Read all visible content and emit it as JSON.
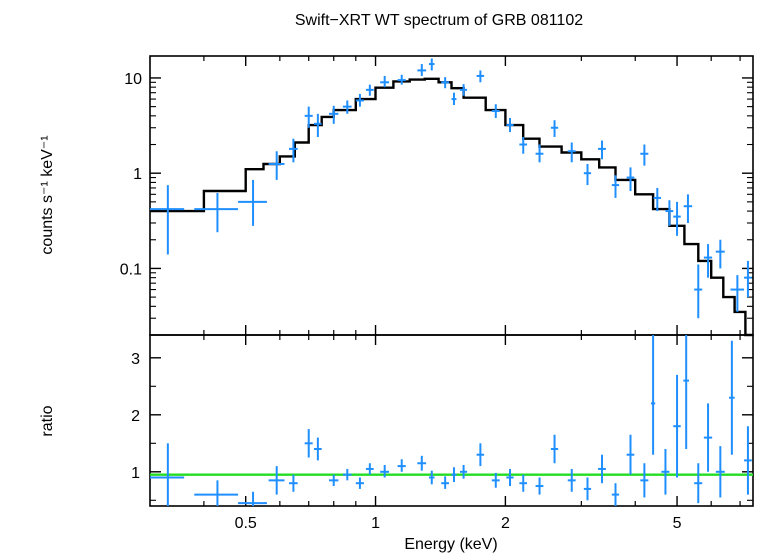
{
  "chart_data": [
    {
      "type": "scatter",
      "title": "Swift−XRT WT spectrum of GRB 081102",
      "xlabel": "",
      "ylabel": "counts s⁻¹ keV⁻¹",
      "xscale": "log",
      "yscale": "log",
      "xlim": [
        0.3,
        7.5
      ],
      "ylim": [
        0.02,
        17
      ],
      "yticks": [
        0.1,
        1,
        10
      ],
      "ytick_labels": [
        "0.1",
        "1",
        "10"
      ],
      "grid": false,
      "colors": {
        "data": "#1f8fff",
        "model": "#000000",
        "axes": "#000000"
      },
      "series": [
        {
          "kind": "data-crosses",
          "points": [
            {
              "x": 0.33,
              "dx": 0.03,
              "y": 0.42,
              "ylo": 0.14,
              "yhi": 0.75
            },
            {
              "x": 0.43,
              "dx": 0.05,
              "y": 0.42,
              "ylo": 0.24,
              "yhi": 0.62
            },
            {
              "x": 0.52,
              "dx": 0.04,
              "y": 0.5,
              "ylo": 0.28,
              "yhi": 0.85
            },
            {
              "x": 0.59,
              "dx": 0.025,
              "y": 1.25,
              "ylo": 0.85,
              "yhi": 1.7
            },
            {
              "x": 0.645,
              "dx": 0.015,
              "y": 1.8,
              "ylo": 1.3,
              "yhi": 2.3
            },
            {
              "x": 0.7,
              "dx": 0.015,
              "y": 4.0,
              "ylo": 3.0,
              "yhi": 5.0
            },
            {
              "x": 0.735,
              "dx": 0.015,
              "y": 3.3,
              "ylo": 2.4,
              "yhi": 4.2
            },
            {
              "x": 0.8,
              "dx": 0.02,
              "y": 4.2,
              "ylo": 3.3,
              "yhi": 5.1
            },
            {
              "x": 0.86,
              "dx": 0.02,
              "y": 5.0,
              "ylo": 4.2,
              "yhi": 5.8
            },
            {
              "x": 0.92,
              "dx": 0.02,
              "y": 5.8,
              "ylo": 5.0,
              "yhi": 6.8
            },
            {
              "x": 0.97,
              "dx": 0.02,
              "y": 7.5,
              "ylo": 6.5,
              "yhi": 8.5
            },
            {
              "x": 1.05,
              "dx": 0.025,
              "y": 9.0,
              "ylo": 8.0,
              "yhi": 10.5
            },
            {
              "x": 1.15,
              "dx": 0.025,
              "y": 9.5,
              "ylo": 8.5,
              "yhi": 10.8
            },
            {
              "x": 1.28,
              "dx": 0.03,
              "y": 12.0,
              "ylo": 10.5,
              "yhi": 14.0
            },
            {
              "x": 1.35,
              "dx": 0.02,
              "y": 14.0,
              "ylo": 12.0,
              "yhi": 16.0
            },
            {
              "x": 1.45,
              "dx": 0.03,
              "y": 9.0,
              "ylo": 7.8,
              "yhi": 10.2
            },
            {
              "x": 1.52,
              "dx": 0.02,
              "y": 6.0,
              "ylo": 5.2,
              "yhi": 7.0
            },
            {
              "x": 1.6,
              "dx": 0.03,
              "y": 7.5,
              "ylo": 6.5,
              "yhi": 8.6
            },
            {
              "x": 1.75,
              "dx": 0.035,
              "y": 10.5,
              "ylo": 9.0,
              "yhi": 12.0
            },
            {
              "x": 1.9,
              "dx": 0.04,
              "y": 4.5,
              "ylo": 3.8,
              "yhi": 5.3
            },
            {
              "x": 2.05,
              "dx": 0.04,
              "y": 3.2,
              "ylo": 2.7,
              "yhi": 3.8
            },
            {
              "x": 2.2,
              "dx": 0.045,
              "y": 2.0,
              "ylo": 1.6,
              "yhi": 2.4
            },
            {
              "x": 2.4,
              "dx": 0.05,
              "y": 1.6,
              "ylo": 1.3,
              "yhi": 2.0
            },
            {
              "x": 2.6,
              "dx": 0.05,
              "y": 3.0,
              "ylo": 2.4,
              "yhi": 3.6
            },
            {
              "x": 2.85,
              "dx": 0.06,
              "y": 1.7,
              "ylo": 1.3,
              "yhi": 2.1
            },
            {
              "x": 3.1,
              "dx": 0.06,
              "y": 1.0,
              "ylo": 0.75,
              "yhi": 1.25
            },
            {
              "x": 3.35,
              "dx": 0.07,
              "y": 1.8,
              "ylo": 1.4,
              "yhi": 2.2
            },
            {
              "x": 3.6,
              "dx": 0.07,
              "y": 0.75,
              "ylo": 0.55,
              "yhi": 0.95
            },
            {
              "x": 3.9,
              "dx": 0.08,
              "y": 0.9,
              "ylo": 0.65,
              "yhi": 1.15
            },
            {
              "x": 4.2,
              "dx": 0.09,
              "y": 1.6,
              "ylo": 1.2,
              "yhi": 2.0
            },
            {
              "x": 4.5,
              "dx": 0.09,
              "y": 0.55,
              "ylo": 0.4,
              "yhi": 0.7
            },
            {
              "x": 4.8,
              "dx": 0.1,
              "y": 0.4,
              "ylo": 0.28,
              "yhi": 0.52
            },
            {
              "x": 5.0,
              "dx": 0.1,
              "y": 0.35,
              "ylo": 0.22,
              "yhi": 0.5
            },
            {
              "x": 5.3,
              "dx": 0.12,
              "y": 0.45,
              "ylo": 0.3,
              "yhi": 0.6
            },
            {
              "x": 5.6,
              "dx": 0.12,
              "y": 0.06,
              "ylo": 0.03,
              "yhi": 0.11
            },
            {
              "x": 5.9,
              "dx": 0.13,
              "y": 0.13,
              "ylo": 0.08,
              "yhi": 0.18
            },
            {
              "x": 6.3,
              "dx": 0.15,
              "y": 0.15,
              "ylo": 0.1,
              "yhi": 0.2
            },
            {
              "x": 6.9,
              "dx": 0.25,
              "y": 0.06,
              "ylo": 0.035,
              "yhi": 0.085
            },
            {
              "x": 7.3,
              "dx": 0.15,
              "y": 0.08,
              "ylo": 0.05,
              "yhi": 0.12
            }
          ]
        },
        {
          "kind": "model-step",
          "edges": [
            0.3,
            0.4,
            0.5,
            0.55,
            0.6,
            0.65,
            0.7,
            0.75,
            0.8,
            0.9,
            1.0,
            1.1,
            1.2,
            1.3,
            1.4,
            1.5,
            1.6,
            1.8,
            2.0,
            2.2,
            2.4,
            2.7,
            3.0,
            3.3,
            3.6,
            4.0,
            4.4,
            4.8,
            5.2,
            5.6,
            6.0,
            6.4,
            6.8,
            7.2,
            7.5
          ],
          "values": [
            0.4,
            0.65,
            1.1,
            1.25,
            1.5,
            2.1,
            3.2,
            3.9,
            4.6,
            6.0,
            7.9,
            9.2,
            9.6,
            9.8,
            9.0,
            7.8,
            6.2,
            4.6,
            3.2,
            2.3,
            1.9,
            1.65,
            1.4,
            1.15,
            0.85,
            0.6,
            0.42,
            0.28,
            0.18,
            0.12,
            0.08,
            0.05,
            0.035,
            0.02
          ]
        }
      ]
    },
    {
      "type": "scatter",
      "title": "",
      "xlabel": "Energy (keV)",
      "ylabel": "ratio",
      "xscale": "log",
      "xlim": [
        0.3,
        7.5
      ],
      "ylim": [
        0.4,
        3.4
      ],
      "xticks": [
        0.5,
        1,
        2,
        5
      ],
      "xtick_labels": [
        "0.5",
        "1",
        "2",
        "5"
      ],
      "yticks": [
        1,
        2,
        3
      ],
      "ytick_labels": [
        "1",
        "2",
        "3"
      ],
      "grid": false,
      "colors": {
        "data": "#1f8fff",
        "reference": "#22dd22",
        "axes": "#000000"
      },
      "reference_line": 0.95,
      "series": [
        {
          "kind": "data-crosses",
          "points": [
            {
              "x": 0.33,
              "dx": 0.03,
              "y": 0.9,
              "ylo": 0.35,
              "yhi": 1.5
            },
            {
              "x": 0.43,
              "dx": 0.05,
              "y": 0.6,
              "ylo": 0.38,
              "yhi": 0.85
            },
            {
              "x": 0.52,
              "dx": 0.04,
              "y": 0.45,
              "ylo": 0.3,
              "yhi": 0.65
            },
            {
              "x": 0.59,
              "dx": 0.025,
              "y": 0.85,
              "ylo": 0.6,
              "yhi": 1.1
            },
            {
              "x": 0.645,
              "dx": 0.015,
              "y": 0.8,
              "ylo": 0.65,
              "yhi": 0.95
            },
            {
              "x": 0.7,
              "dx": 0.015,
              "y": 1.5,
              "ylo": 1.25,
              "yhi": 1.75
            },
            {
              "x": 0.735,
              "dx": 0.015,
              "y": 1.4,
              "ylo": 1.2,
              "yhi": 1.6
            },
            {
              "x": 0.8,
              "dx": 0.02,
              "y": 0.85,
              "ylo": 0.75,
              "yhi": 0.95
            },
            {
              "x": 0.86,
              "dx": 0.02,
              "y": 0.95,
              "ylo": 0.85,
              "yhi": 1.05
            },
            {
              "x": 0.92,
              "dx": 0.02,
              "y": 0.8,
              "ylo": 0.7,
              "yhi": 0.9
            },
            {
              "x": 0.97,
              "dx": 0.02,
              "y": 1.05,
              "ylo": 0.95,
              "yhi": 1.15
            },
            {
              "x": 1.05,
              "dx": 0.025,
              "y": 1.0,
              "ylo": 0.9,
              "yhi": 1.12
            },
            {
              "x": 1.15,
              "dx": 0.025,
              "y": 1.1,
              "ylo": 1.0,
              "yhi": 1.22
            },
            {
              "x": 1.28,
              "dx": 0.03,
              "y": 1.15,
              "ylo": 1.02,
              "yhi": 1.28
            },
            {
              "x": 1.35,
              "dx": 0.02,
              "y": 0.9,
              "ylo": 0.78,
              "yhi": 1.02
            },
            {
              "x": 1.45,
              "dx": 0.03,
              "y": 0.8,
              "ylo": 0.7,
              "yhi": 0.92
            },
            {
              "x": 1.52,
              "dx": 0.02,
              "y": 0.95,
              "ylo": 0.82,
              "yhi": 1.08
            },
            {
              "x": 1.6,
              "dx": 0.03,
              "y": 1.0,
              "ylo": 0.88,
              "yhi": 1.12
            },
            {
              "x": 1.75,
              "dx": 0.035,
              "y": 1.3,
              "ylo": 1.1,
              "yhi": 1.5
            },
            {
              "x": 1.9,
              "dx": 0.04,
              "y": 0.85,
              "ylo": 0.72,
              "yhi": 0.98
            },
            {
              "x": 2.05,
              "dx": 0.04,
              "y": 0.9,
              "ylo": 0.75,
              "yhi": 1.05
            },
            {
              "x": 2.2,
              "dx": 0.045,
              "y": 0.8,
              "ylo": 0.65,
              "yhi": 0.95
            },
            {
              "x": 2.4,
              "dx": 0.05,
              "y": 0.75,
              "ylo": 0.6,
              "yhi": 0.9
            },
            {
              "x": 2.6,
              "dx": 0.05,
              "y": 1.4,
              "ylo": 1.15,
              "yhi": 1.65
            },
            {
              "x": 2.85,
              "dx": 0.06,
              "y": 0.85,
              "ylo": 0.65,
              "yhi": 1.05
            },
            {
              "x": 3.1,
              "dx": 0.06,
              "y": 0.7,
              "ylo": 0.5,
              "yhi": 0.9
            },
            {
              "x": 3.35,
              "dx": 0.07,
              "y": 1.05,
              "ylo": 0.8,
              "yhi": 1.3
            },
            {
              "x": 3.6,
              "dx": 0.07,
              "y": 0.6,
              "ylo": 0.4,
              "yhi": 0.8
            },
            {
              "x": 3.9,
              "dx": 0.08,
              "y": 1.3,
              "ylo": 0.95,
              "yhi": 1.65
            },
            {
              "x": 4.2,
              "dx": 0.09,
              "y": 0.85,
              "ylo": 0.55,
              "yhi": 1.15
            },
            {
              "x": 4.4,
              "dx": 0.05,
              "y": 2.2,
              "ylo": 1.3,
              "yhi": 3.4
            },
            {
              "x": 4.7,
              "dx": 0.1,
              "y": 1.0,
              "ylo": 0.6,
              "yhi": 1.4
            },
            {
              "x": 5.0,
              "dx": 0.1,
              "y": 1.8,
              "ylo": 0.9,
              "yhi": 2.7
            },
            {
              "x": 5.25,
              "dx": 0.08,
              "y": 2.6,
              "ylo": 1.4,
              "yhi": 3.4
            },
            {
              "x": 5.6,
              "dx": 0.12,
              "y": 0.8,
              "ylo": 0.45,
              "yhi": 1.15
            },
            {
              "x": 5.9,
              "dx": 0.13,
              "y": 1.6,
              "ylo": 1.0,
              "yhi": 2.2
            },
            {
              "x": 6.3,
              "dx": 0.15,
              "y": 1.0,
              "ylo": 0.55,
              "yhi": 1.45
            },
            {
              "x": 6.7,
              "dx": 0.1,
              "y": 2.3,
              "ylo": 1.3,
              "yhi": 3.3
            },
            {
              "x": 7.3,
              "dx": 0.15,
              "y": 1.2,
              "ylo": 0.6,
              "yhi": 1.8
            }
          ]
        }
      ]
    }
  ]
}
